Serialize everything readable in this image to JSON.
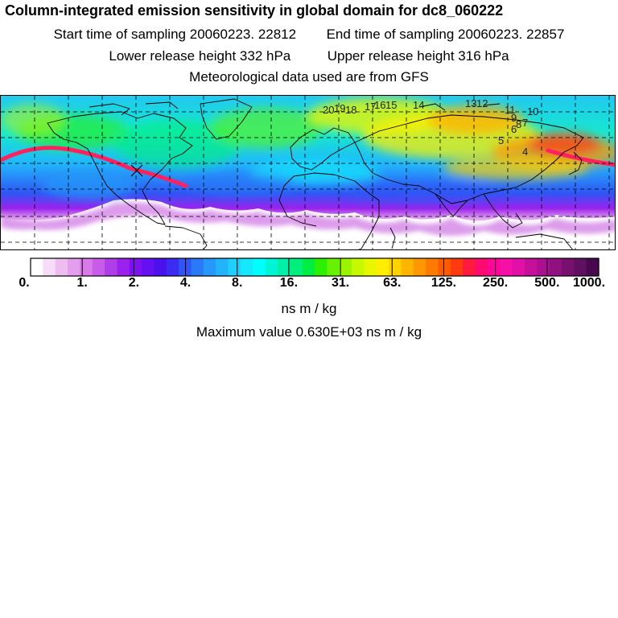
{
  "title": "Column-integrated emission sensitivity in global domain for dc8_060222",
  "sampling": {
    "start_label": "Start time of sampling",
    "start_value": "20060223. 22812",
    "end_label": "End time of sampling",
    "end_value": "20060223. 22857"
  },
  "release": {
    "lower_label": "Lower release height",
    "lower_value": "332 hPa",
    "upper_label": "Upper release height",
    "upper_value": "316 hPa"
  },
  "met_note": "Meteorological data used are from GFS",
  "map": {
    "day_markers": [
      "20",
      "19",
      "18",
      "17",
      "16",
      "15",
      "14",
      "13",
      "12",
      "11",
      "10",
      "9",
      "8",
      "7",
      "6",
      "5",
      "4"
    ]
  },
  "colorbar": {
    "tick_labels": [
      "0.",
      "1.",
      "2.",
      "4.",
      "8.",
      "16.",
      "31.",
      "63.",
      "125.",
      "250.",
      "500.",
      "1000."
    ],
    "colors": [
      "#ffffff",
      "#f7dcf7",
      "#eebdf0",
      "#e59ded",
      "#d77bea",
      "#c65ce8",
      "#b03ee6",
      "#9b22ec",
      "#7f11f0",
      "#6510f2",
      "#4a10ee",
      "#3a2cf0",
      "#2f55f5",
      "#2a79f7",
      "#2598fa",
      "#22b4fb",
      "#1fd0fc",
      "#16e8fc",
      "#00ffff",
      "#00f5d6",
      "#00f0a8",
      "#00ee7c",
      "#00ee44",
      "#2cf000",
      "#66f200",
      "#9af400",
      "#c6f800",
      "#e8f600",
      "#ffee00",
      "#ffd200",
      "#ffb400",
      "#ff9800",
      "#ff7a00",
      "#ff5a00",
      "#ff3a10",
      "#ff1a40",
      "#ff0a70",
      "#ff0898",
      "#f510a8",
      "#e010a8",
      "#c6109c",
      "#ac1090",
      "#901080",
      "#781070",
      "#601060",
      "#480850"
    ],
    "units": "ns m / kg"
  },
  "maximum": {
    "label": "Maximum value",
    "value": "0.630E+03",
    "units": "ns m / kg"
  },
  "palette": {
    "land_outline": "#000000",
    "grid": "#000000",
    "track": "#ff2060"
  }
}
